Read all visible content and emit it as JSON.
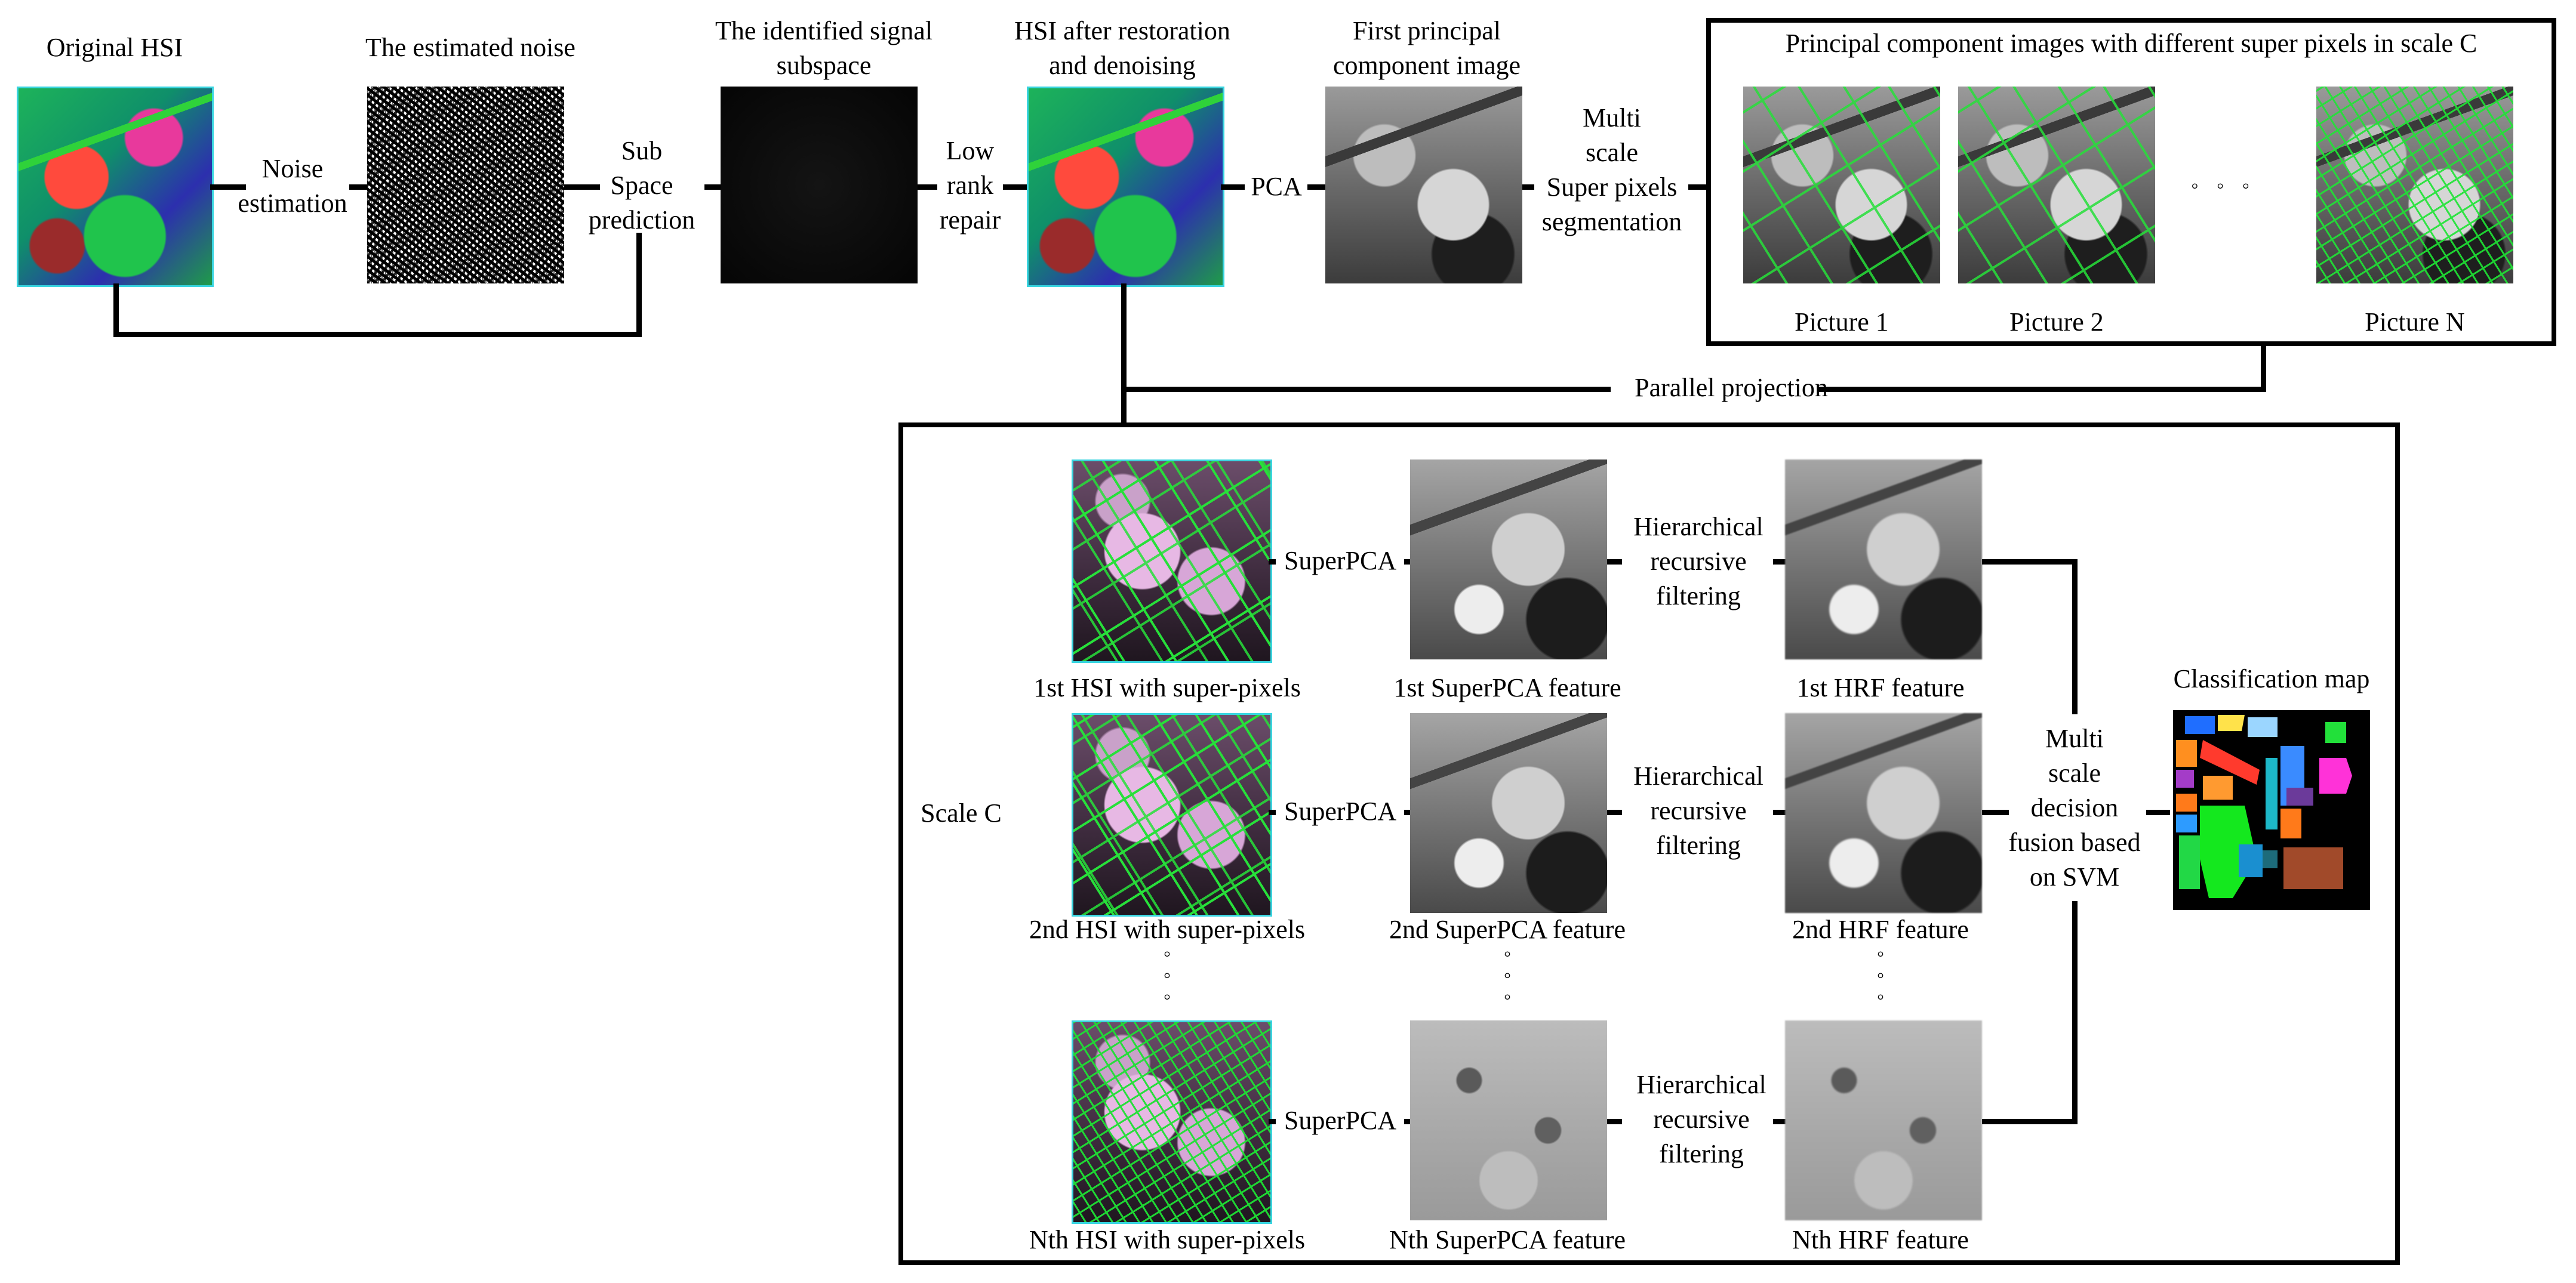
{
  "top_row": {
    "original_hsi": "Original HSI",
    "estimated_noise": "The estimated noise",
    "signal_subspace": [
      "The identified signal",
      "subspace"
    ],
    "hsi_restored": [
      "HSI after restoration",
      "and denoising"
    ],
    "first_pc": [
      "First principal",
      "component image"
    ],
    "pc_images_title": "Principal component images with different super pixels in scale C"
  },
  "steps": {
    "noise_estimation": [
      "Noise",
      "estimation"
    ],
    "subspace_prediction": [
      "Sub",
      "Space",
      "prediction"
    ],
    "low_rank_repair": [
      "Low",
      "rank",
      "repair"
    ],
    "pca": "PCA",
    "multiscale_segmentation": [
      "Multi",
      "scale",
      "Super pixels",
      "segmentation"
    ],
    "parallel_projection": "Parallel projection"
  },
  "pictures": [
    "Picture 1",
    "Picture 2",
    "Picture N"
  ],
  "scale_box": {
    "label": "Scale C",
    "rows": [
      {
        "hsi": "1st HSI with super-pixels",
        "superpca": "SuperPCA",
        "spca_feature": "1st SuperPCA feature",
        "hrf_label": [
          "Hierarchical",
          "recursive",
          "filtering"
        ],
        "hrf_feature": "1st HRF feature"
      },
      {
        "hsi": "2nd HSI with super-pixels",
        "superpca": "SuperPCA",
        "spca_feature": "2nd SuperPCA feature",
        "hrf_label": [
          "Hierarchical",
          "recursive",
          "filtering"
        ],
        "hrf_feature": "2nd HRF feature"
      },
      {
        "hsi": "Nth HSI with super-pixels",
        "superpca": "SuperPCA",
        "spca_feature": "Nth SuperPCA feature",
        "hrf_label": [
          "Hierarchical",
          "recursive",
          "filtering"
        ],
        "hrf_feature": "Nth HRF feature"
      }
    ],
    "fusion": [
      "Multi",
      "scale",
      "decision",
      "fusion based",
      "on SVM"
    ],
    "classification_map": "Classification map"
  },
  "colors": {
    "line": "#000000",
    "superpixel_boundary": "#27e03a",
    "hsi_border": "#39d5e0"
  }
}
